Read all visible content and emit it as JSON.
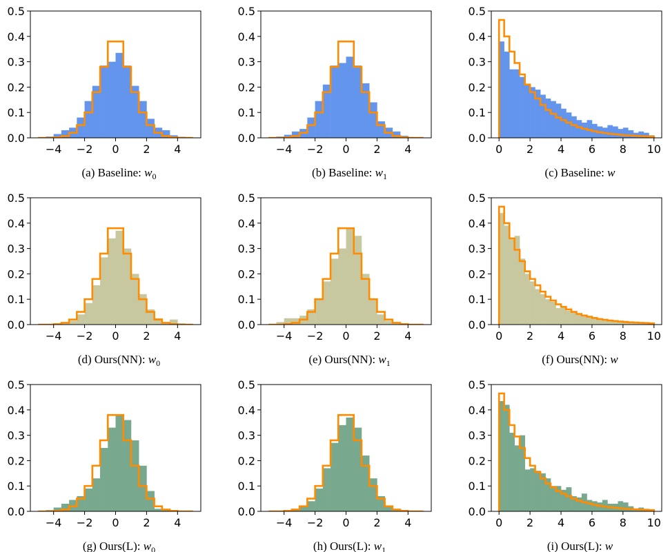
{
  "colors": {
    "baseline_fill": "#6495ED",
    "nn_fill": "#C8C8A0",
    "l_fill": "#78A88E",
    "reference_outline": "#FF8C00"
  },
  "chart_data": [
    {
      "type": "histogram",
      "caption": {
        "prefix": "(a)  Baseline:",
        "var": "w",
        "sub": "0"
      },
      "xlim": [
        -5.5,
        5.5
      ],
      "ylim": [
        0,
        0.5
      ],
      "xticks": [
        -4,
        -2,
        0,
        2,
        4
      ],
      "xtick_labels": [
        "−4",
        "−2",
        "0",
        "2",
        "4"
      ],
      "yticks": [
        0,
        0.1,
        0.2,
        0.3,
        0.4,
        0.5
      ],
      "ytick_labels": [
        "0.0",
        "0.1",
        "0.2",
        "0.3",
        "0.4",
        "0.5"
      ],
      "bar_edges": [
        -5,
        -4.5,
        -4,
        -3.5,
        -3,
        -2.5,
        -2,
        -1.5,
        -1,
        -0.5,
        0,
        0.5,
        1,
        1.5,
        2,
        2.5,
        3,
        3.5,
        4,
        4.5,
        5
      ],
      "bar_values": [
        0,
        0.005,
        0.015,
        0.03,
        0.04,
        0.08,
        0.145,
        0.205,
        0.285,
        0.3,
        0.335,
        0.285,
        0.205,
        0.145,
        0.075,
        0.04,
        0.03,
        0.01,
        0.004,
        0
      ],
      "reference_edges": [
        -5,
        -4.5,
        -4,
        -3.5,
        -3,
        -2.5,
        -2,
        -1.5,
        -1,
        -0.5,
        0,
        0.5,
        1,
        1.5,
        2,
        2.5,
        3,
        3.5,
        4,
        4.5,
        5
      ],
      "reference_values": [
        0,
        0,
        0.002,
        0.007,
        0.02,
        0.05,
        0.1,
        0.18,
        0.28,
        0.38,
        0.38,
        0.28,
        0.18,
        0.1,
        0.05,
        0.02,
        0.007,
        0.002,
        0,
        0
      ]
    },
    {
      "type": "histogram",
      "caption": {
        "prefix": "(b)  Baseline:",
        "var": "w",
        "sub": "1"
      },
      "xlim": [
        -5.5,
        5.5
      ],
      "ylim": [
        0,
        0.5
      ],
      "xticks": [
        -4,
        -2,
        0,
        2,
        4
      ],
      "xtick_labels": [
        "−4",
        "−2",
        "0",
        "2",
        "4"
      ],
      "yticks": [
        0,
        0.1,
        0.2,
        0.3,
        0.4,
        0.5
      ],
      "ytick_labels": [
        "0.0",
        "0.1",
        "0.2",
        "0.3",
        "0.4",
        "0.5"
      ],
      "bar_edges": [
        -5,
        -4.5,
        -4,
        -3.5,
        -3,
        -2.5,
        -2,
        -1.5,
        -1,
        -0.5,
        0,
        0.5,
        1,
        1.5,
        2,
        2.5,
        3,
        3.5,
        4,
        4.5,
        5
      ],
      "bar_values": [
        0,
        0.005,
        0.012,
        0.025,
        0.035,
        0.08,
        0.145,
        0.21,
        0.285,
        0.295,
        0.32,
        0.285,
        0.215,
        0.14,
        0.065,
        0.04,
        0.025,
        0.008,
        0.003,
        0
      ],
      "reference_edges": [
        -5,
        -4.5,
        -4,
        -3.5,
        -3,
        -2.5,
        -2,
        -1.5,
        -1,
        -0.5,
        0,
        0.5,
        1,
        1.5,
        2,
        2.5,
        3,
        3.5,
        4,
        4.5,
        5
      ],
      "reference_values": [
        0,
        0,
        0.002,
        0.007,
        0.02,
        0.05,
        0.1,
        0.18,
        0.28,
        0.38,
        0.38,
        0.28,
        0.18,
        0.1,
        0.05,
        0.02,
        0.007,
        0.002,
        0,
        0
      ]
    },
    {
      "type": "histogram",
      "caption": {
        "prefix": "(c)  Baseline:",
        "var": "w",
        "sub": ""
      },
      "xlim": [
        -0.5,
        10.5
      ],
      "ylim": [
        0,
        0.5
      ],
      "xticks": [
        0,
        2,
        4,
        6,
        8,
        10
      ],
      "xtick_labels": [
        "0",
        "2",
        "4",
        "6",
        "8",
        "10"
      ],
      "yticks": [
        0,
        0.1,
        0.2,
        0.3,
        0.4,
        0.5
      ],
      "ytick_labels": [
        "0.0",
        "0.1",
        "0.2",
        "0.3",
        "0.4",
        "0.5"
      ],
      "bar_edges": [
        0,
        0.33,
        0.67,
        1,
        1.33,
        1.67,
        2,
        2.33,
        2.67,
        3,
        3.33,
        3.67,
        4,
        4.33,
        4.67,
        5,
        5.33,
        5.67,
        6,
        6.33,
        6.67,
        7,
        7.33,
        7.67,
        8,
        8.33,
        8.67,
        9,
        9.33,
        9.67,
        10
      ],
      "bar_values": [
        0.38,
        0.34,
        0.27,
        0.27,
        0.24,
        0.21,
        0.2,
        0.19,
        0.17,
        0.155,
        0.145,
        0.135,
        0.115,
        0.1,
        0.085,
        0.07,
        0.06,
        0.07,
        0.055,
        0.045,
        0.04,
        0.05,
        0.045,
        0.035,
        0.04,
        0.03,
        0.02,
        0.025,
        0.02,
        0.01
      ],
      "reference_edges": [
        0,
        0.33,
        0.67,
        1,
        1.33,
        1.67,
        2,
        2.33,
        2.67,
        3,
        3.33,
        3.67,
        4,
        4.33,
        4.67,
        5,
        5.33,
        5.67,
        6,
        6.33,
        6.67,
        7,
        7.33,
        7.67,
        8,
        8.33,
        8.67,
        9,
        9.33,
        9.67,
        10
      ],
      "reference_values": [
        0.465,
        0.4,
        0.34,
        0.295,
        0.25,
        0.21,
        0.18,
        0.155,
        0.13,
        0.11,
        0.095,
        0.08,
        0.07,
        0.06,
        0.05,
        0.042,
        0.036,
        0.031,
        0.026,
        0.022,
        0.019,
        0.016,
        0.014,
        0.012,
        0.01,
        0.009,
        0.008,
        0.007,
        0.006,
        0.005
      ]
    },
    {
      "type": "histogram",
      "caption": {
        "prefix": "(d)  Ours(NN):",
        "var": "w",
        "sub": "0"
      },
      "xlim": [
        -5.5,
        5.5
      ],
      "ylim": [
        0,
        0.5
      ],
      "xticks": [
        -4,
        -2,
        0,
        2,
        4
      ],
      "xtick_labels": [
        "−4",
        "−2",
        "0",
        "2",
        "4"
      ],
      "yticks": [
        0,
        0.1,
        0.2,
        0.3,
        0.4,
        0.5
      ],
      "ytick_labels": [
        "0.0",
        "0.1",
        "0.2",
        "0.3",
        "0.4",
        "0.5"
      ],
      "bar_edges": [
        -5,
        -4.5,
        -4,
        -3.5,
        -3,
        -2.5,
        -2,
        -1.5,
        -1,
        -0.5,
        0,
        0.5,
        1,
        1.5,
        2,
        2.5,
        3,
        3.5,
        4,
        4.5,
        5
      ],
      "bar_values": [
        0,
        0,
        0.003,
        0.006,
        0.015,
        0.04,
        0.085,
        0.155,
        0.265,
        0.34,
        0.37,
        0.3,
        0.2,
        0.12,
        0.06,
        0.025,
        0.008,
        0.02,
        0.005,
        0
      ],
      "reference_edges": [
        -5,
        -4.5,
        -4,
        -3.5,
        -3,
        -2.5,
        -2,
        -1.5,
        -1,
        -0.5,
        0,
        0.5,
        1,
        1.5,
        2,
        2.5,
        3,
        3.5,
        4,
        4.5,
        5
      ],
      "reference_values": [
        0,
        0,
        0.002,
        0.007,
        0.02,
        0.05,
        0.1,
        0.18,
        0.28,
        0.38,
        0.38,
        0.28,
        0.18,
        0.1,
        0.05,
        0.02,
        0.007,
        0.002,
        0,
        0
      ]
    },
    {
      "type": "histogram",
      "caption": {
        "prefix": "(e)  Ours(NN):",
        "var": "w",
        "sub": "1"
      },
      "xlim": [
        -5.5,
        5.5
      ],
      "ylim": [
        0,
        0.5
      ],
      "xticks": [
        -4,
        -2,
        0,
        2,
        4
      ],
      "xtick_labels": [
        "−4",
        "−2",
        "0",
        "2",
        "4"
      ],
      "yticks": [
        0,
        0.1,
        0.2,
        0.3,
        0.4,
        0.5
      ],
      "ytick_labels": [
        "0.0",
        "0.1",
        "0.2",
        "0.3",
        "0.4",
        "0.5"
      ],
      "bar_edges": [
        -5,
        -4.5,
        -4,
        -3.5,
        -3,
        -2.5,
        -2,
        -1.5,
        -1,
        -0.5,
        0,
        0.5,
        1,
        1.5,
        2,
        2.5,
        3,
        3.5,
        4,
        4.5,
        5
      ],
      "bar_values": [
        0,
        0.01,
        0.025,
        0.025,
        0.035,
        0.06,
        0.1,
        0.17,
        0.26,
        0.3,
        0.38,
        0.35,
        0.2,
        0.1,
        0.04,
        0.015,
        0.004,
        0.001,
        0,
        0
      ],
      "reference_edges": [
        -5,
        -4.5,
        -4,
        -3.5,
        -3,
        -2.5,
        -2,
        -1.5,
        -1,
        -0.5,
        0,
        0.5,
        1,
        1.5,
        2,
        2.5,
        3,
        3.5,
        4,
        4.5,
        5
      ],
      "reference_values": [
        0,
        0,
        0.002,
        0.007,
        0.02,
        0.05,
        0.1,
        0.18,
        0.28,
        0.38,
        0.38,
        0.28,
        0.18,
        0.1,
        0.05,
        0.02,
        0.007,
        0.002,
        0,
        0
      ]
    },
    {
      "type": "histogram",
      "caption": {
        "prefix": "(f)  Ours(NN):",
        "var": "w",
        "sub": ""
      },
      "xlim": [
        -0.5,
        10.5
      ],
      "ylim": [
        0,
        0.5
      ],
      "xticks": [
        0,
        2,
        4,
        6,
        8,
        10
      ],
      "xtick_labels": [
        "0",
        "2",
        "4",
        "6",
        "8",
        "10"
      ],
      "yticks": [
        0,
        0.1,
        0.2,
        0.3,
        0.4,
        0.5
      ],
      "ytick_labels": [
        "0.0",
        "0.1",
        "0.2",
        "0.3",
        "0.4",
        "0.5"
      ],
      "bar_edges": [
        0,
        0.33,
        0.67,
        1,
        1.33,
        1.67,
        2,
        2.33,
        2.67,
        3,
        3.33,
        3.67,
        4,
        4.33,
        4.67,
        5,
        5.33,
        5.67,
        6,
        6.33,
        6.67,
        7,
        7.33,
        7.67,
        8,
        8.33,
        8.67,
        9,
        9.33,
        9.67,
        10
      ],
      "bar_values": [
        0.44,
        0.39,
        0.34,
        0.35,
        0.26,
        0.2,
        0.17,
        0.14,
        0.12,
        0.1,
        0.09,
        0.065,
        0.07,
        0.055,
        0.05,
        0.04,
        0.035,
        0.03,
        0.03,
        0.02,
        0.02,
        0.015,
        0.015,
        0.01,
        0.015,
        0.01,
        0.01,
        0.005,
        0.01,
        0.005
      ],
      "reference_edges": [
        0,
        0.33,
        0.67,
        1,
        1.33,
        1.67,
        2,
        2.33,
        2.67,
        3,
        3.33,
        3.67,
        4,
        4.33,
        4.67,
        5,
        5.33,
        5.67,
        6,
        6.33,
        6.67,
        7,
        7.33,
        7.67,
        8,
        8.33,
        8.67,
        9,
        9.33,
        9.67,
        10
      ],
      "reference_values": [
        0.465,
        0.4,
        0.34,
        0.295,
        0.25,
        0.21,
        0.18,
        0.155,
        0.13,
        0.11,
        0.095,
        0.08,
        0.07,
        0.06,
        0.05,
        0.042,
        0.036,
        0.031,
        0.026,
        0.022,
        0.019,
        0.016,
        0.014,
        0.012,
        0.01,
        0.009,
        0.008,
        0.007,
        0.006,
        0.005
      ]
    },
    {
      "type": "histogram",
      "caption": {
        "prefix": "(g)  Ours(L):",
        "var": "w",
        "sub": "0"
      },
      "xlim": [
        -5.5,
        5.5
      ],
      "ylim": [
        0,
        0.5
      ],
      "xticks": [
        -4,
        -2,
        0,
        2,
        4
      ],
      "xtick_labels": [
        "−4",
        "−2",
        "0",
        "2",
        "4"
      ],
      "yticks": [
        0,
        0.1,
        0.2,
        0.3,
        0.4,
        0.5
      ],
      "ytick_labels": [
        "0.0",
        "0.1",
        "0.2",
        "0.3",
        "0.4",
        "0.5"
      ],
      "bar_edges": [
        -5,
        -4.5,
        -4,
        -3.5,
        -3,
        -2.5,
        -2,
        -1.5,
        -1,
        -0.5,
        0,
        0.5,
        1,
        1.5,
        2,
        2.5,
        3,
        3.5,
        4,
        4.5,
        5
      ],
      "bar_values": [
        0,
        0.005,
        0.015,
        0.03,
        0.045,
        0.06,
        0.09,
        0.13,
        0.25,
        0.33,
        0.38,
        0.36,
        0.28,
        0.18,
        0.08,
        0.01,
        0.005,
        0.002,
        0,
        0
      ],
      "reference_edges": [
        -5,
        -4.5,
        -4,
        -3.5,
        -3,
        -2.5,
        -2,
        -1.5,
        -1,
        -0.5,
        0,
        0.5,
        1,
        1.5,
        2,
        2.5,
        3,
        3.5,
        4,
        4.5,
        5
      ],
      "reference_values": [
        0,
        0,
        0.002,
        0.007,
        0.02,
        0.05,
        0.1,
        0.18,
        0.28,
        0.38,
        0.38,
        0.28,
        0.18,
        0.1,
        0.05,
        0.02,
        0.007,
        0.002,
        0,
        0
      ]
    },
    {
      "type": "histogram",
      "caption": {
        "prefix": "(h)  Ours(L):",
        "var": "w",
        "sub": "1"
      },
      "xlim": [
        -5.5,
        5.5
      ],
      "ylim": [
        0,
        0.5
      ],
      "xticks": [
        -4,
        -2,
        0,
        2,
        4
      ],
      "xtick_labels": [
        "−4",
        "−2",
        "0",
        "2",
        "4"
      ],
      "yticks": [
        0,
        0.1,
        0.2,
        0.3,
        0.4,
        0.5
      ],
      "ytick_labels": [
        "0.0",
        "0.1",
        "0.2",
        "0.3",
        "0.4",
        "0.5"
      ],
      "bar_edges": [
        -5,
        -4.5,
        -4,
        -3.5,
        -3,
        -2.5,
        -2,
        -1.5,
        -1,
        -0.5,
        0,
        0.5,
        1,
        1.5,
        2,
        2.5,
        3,
        3.5,
        4,
        4.5,
        5
      ],
      "bar_values": [
        0,
        0.002,
        0.005,
        0.01,
        0.02,
        0.04,
        0.09,
        0.17,
        0.27,
        0.34,
        0.37,
        0.33,
        0.22,
        0.13,
        0.06,
        0.02,
        0.006,
        0.001,
        0,
        0
      ],
      "reference_edges": [
        -5,
        -4.5,
        -4,
        -3.5,
        -3,
        -2.5,
        -2,
        -1.5,
        -1,
        -0.5,
        0,
        0.5,
        1,
        1.5,
        2,
        2.5,
        3,
        3.5,
        4,
        4.5,
        5
      ],
      "reference_values": [
        0,
        0,
        0.002,
        0.007,
        0.02,
        0.05,
        0.1,
        0.18,
        0.28,
        0.38,
        0.38,
        0.28,
        0.18,
        0.1,
        0.05,
        0.02,
        0.007,
        0.002,
        0,
        0
      ]
    },
    {
      "type": "histogram",
      "caption": {
        "prefix": "(i)  Ours(L):",
        "var": "w",
        "sub": ""
      },
      "xlim": [
        -0.5,
        10.5
      ],
      "ylim": [
        0,
        0.5
      ],
      "xticks": [
        0,
        2,
        4,
        6,
        8,
        10
      ],
      "xtick_labels": [
        "0",
        "2",
        "4",
        "6",
        "8",
        "10"
      ],
      "yticks": [
        0,
        0.1,
        0.2,
        0.3,
        0.4,
        0.5
      ],
      "ytick_labels": [
        "0.0",
        "0.1",
        "0.2",
        "0.3",
        "0.4",
        "0.5"
      ],
      "bar_edges": [
        0,
        0.33,
        0.67,
        1,
        1.33,
        1.67,
        2,
        2.33,
        2.67,
        3,
        3.33,
        3.67,
        4,
        4.33,
        4.67,
        5,
        5.33,
        5.67,
        6,
        6.33,
        6.67,
        7,
        7.33,
        7.67,
        8,
        8.33,
        8.67,
        9,
        9.33,
        9.67,
        10
      ],
      "bar_values": [
        0.435,
        0.42,
        0.31,
        0.26,
        0.3,
        0.165,
        0.17,
        0.16,
        0.15,
        0.13,
        0.1,
        0.1,
        0.085,
        0.095,
        0.06,
        0.055,
        0.07,
        0.045,
        0.04,
        0.035,
        0.045,
        0.03,
        0.03,
        0.04,
        0.035,
        0.02,
        0.01,
        0.015,
        0.01,
        0.005
      ],
      "reference_edges": [
        0,
        0.33,
        0.67,
        1,
        1.33,
        1.67,
        2,
        2.33,
        2.67,
        3,
        3.33,
        3.67,
        4,
        4.33,
        4.67,
        5,
        5.33,
        5.67,
        6,
        6.33,
        6.67,
        7,
        7.33,
        7.67,
        8,
        8.33,
        8.67,
        9,
        9.33,
        9.67,
        10
      ],
      "reference_values": [
        0.465,
        0.4,
        0.34,
        0.295,
        0.25,
        0.21,
        0.18,
        0.155,
        0.13,
        0.11,
        0.095,
        0.08,
        0.07,
        0.06,
        0.05,
        0.042,
        0.036,
        0.031,
        0.026,
        0.022,
        0.019,
        0.016,
        0.014,
        0.012,
        0.01,
        0.009,
        0.008,
        0.007,
        0.006,
        0.005
      ]
    }
  ]
}
